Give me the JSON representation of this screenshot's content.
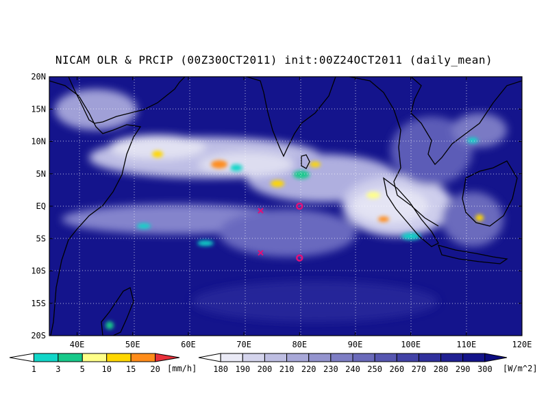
{
  "title": "NICAM OLR & PRCIP (00Z30OCT2011) init:00Z24OCT2011 (daily_mean)",
  "map": {
    "lon_range": [
      35,
      120
    ],
    "lat_range": [
      -20,
      20
    ],
    "lon_ticks": [
      "40E",
      "50E",
      "60E",
      "70E",
      "80E",
      "90E",
      "100E",
      "110E",
      "120E"
    ],
    "lat_ticks": [
      "20N",
      "15N",
      "10N",
      "5N",
      "EQ",
      "5S",
      "10S",
      "15S",
      "20S"
    ],
    "grid": "dotted",
    "background_color": "#1a1a8c",
    "coastline_color": "#000000"
  },
  "markers": [
    {
      "type": "cross",
      "lon": 73,
      "lat": -0.7,
      "color": "#e0107a"
    },
    {
      "type": "circle",
      "lon": 80,
      "lat": 0,
      "color": "#e0107a"
    },
    {
      "type": "cross",
      "lon": 73,
      "lat": -7.2,
      "color": "#e0107a"
    },
    {
      "type": "circle",
      "lon": 80,
      "lat": -8,
      "color": "#e0107a"
    }
  ],
  "precip_colorbar": {
    "unit": "[mm/h]",
    "labels": [
      "1",
      "3",
      "5",
      "10",
      "15",
      "20"
    ],
    "colors": [
      "#ffffff",
      "#11d6c8",
      "#17c98a",
      "#ffff88",
      "#ffd700",
      "#ff8c1a",
      "#e8303a"
    ]
  },
  "olr_colorbar": {
    "unit": "[W/m^2]",
    "labels": [
      "180",
      "190",
      "200",
      "210",
      "220",
      "230",
      "240",
      "250",
      "260",
      "270",
      "280",
      "290",
      "300"
    ],
    "colors": [
      "#ffffff",
      "#eaeaf6",
      "#d4d4ec",
      "#bebee2",
      "#a8a8d8",
      "#9494ce",
      "#7e7ec4",
      "#6a6aba",
      "#5656b0",
      "#4242a6",
      "#30309c",
      "#202092",
      "#14148a",
      "#0c0c80"
    ]
  }
}
